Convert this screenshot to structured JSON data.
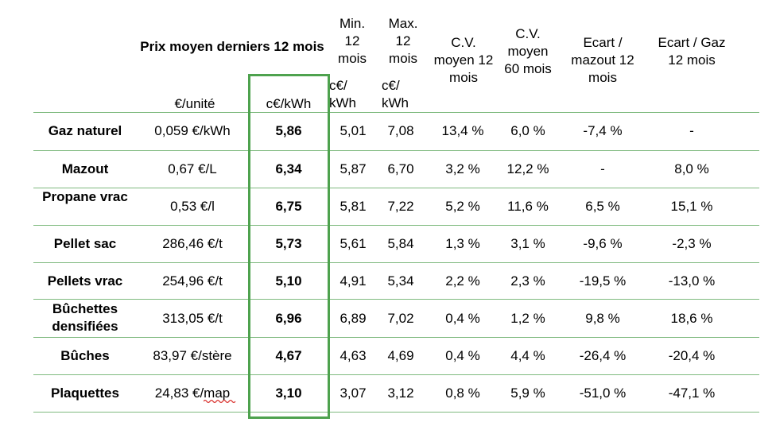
{
  "headers": {
    "prix_moyen": "Prix moyen derniers 12 mois",
    "unit_euro": "€/unité",
    "unit_ckwh": "c€/kWh",
    "min": "Min. 12 mois",
    "min_unit": "c€/ kWh",
    "max": "Max. 12 mois",
    "max_unit": "c€/ kWh",
    "cv12": "C.V. moyen 12 mois",
    "cv60": "C.V. moyen 60 mois",
    "ecart_mazout": "Ecart / mazout 12 mois",
    "ecart_gaz": "Ecart / Gaz 12 mois"
  },
  "rows": [
    {
      "name": "Gaz naturel",
      "price": "0,059 €/kWh",
      "ckwh": "5,86",
      "min": "5,01",
      "max": "7,08",
      "cv12": "13,4 %",
      "cv60": "6,0 %",
      "ecart_mazout": "-7,4 %",
      "ecart_gaz": "-"
    },
    {
      "name": "Mazout",
      "price": "0,67 €/L",
      "ckwh": "6,34",
      "min": "5,87",
      "max": "6,70",
      "cv12": "3,2 %",
      "cv60": "12,2 %",
      "ecart_mazout": "-",
      "ecart_gaz": "8,0 %"
    },
    {
      "name": "Propane vrac",
      "price": "0,53 €/l",
      "ckwh": "6,75",
      "min": "5,81",
      "max": "7,22",
      "cv12": "5,2 %",
      "cv60": "11,6 %",
      "ecart_mazout": "6,5 %",
      "ecart_gaz": "15,1 %"
    },
    {
      "name": "Pellet sac",
      "price": "286,46 €/t",
      "ckwh": "5,73",
      "min": "5,61",
      "max": "5,84",
      "cv12": "1,3 %",
      "cv60": "3,1 %",
      "ecart_mazout": "-9,6 %",
      "ecart_gaz": "-2,3 %"
    },
    {
      "name": "Pellets vrac",
      "price": "254,96 €/t",
      "ckwh": "5,10",
      "min": "4,91",
      "max": "5,34",
      "cv12": "2,2 %",
      "cv60": "2,3 %",
      "ecart_mazout": "-19,5 %",
      "ecart_gaz": "-13,0 %"
    },
    {
      "name": "Bûchettes densifiées",
      "price": "313,05 €/t",
      "ckwh": "6,96",
      "min": "6,89",
      "max": "7,02",
      "cv12": "0,4 %",
      "cv60": "1,2 %",
      "ecart_mazout": "9,8 %",
      "ecart_gaz": "18,6 %"
    },
    {
      "name": "Bûches",
      "price": "83,97 €/stère",
      "ckwh": "4,67",
      "min": "4,63",
      "max": "4,69",
      "cv12": "0,4 %",
      "cv60": "4,4 %",
      "ecart_mazout": "-26,4 %",
      "ecart_gaz": "-20,4 %"
    },
    {
      "name": "Plaquettes",
      "price": "24,83 €/map",
      "ckwh": "3,10",
      "min": "3,07",
      "max": "3,12",
      "cv12": "0,8 %",
      "cv60": "5,9 %",
      "ecart_mazout": "-51,0 %",
      "ecart_gaz": "-47,1 %"
    }
  ]
}
